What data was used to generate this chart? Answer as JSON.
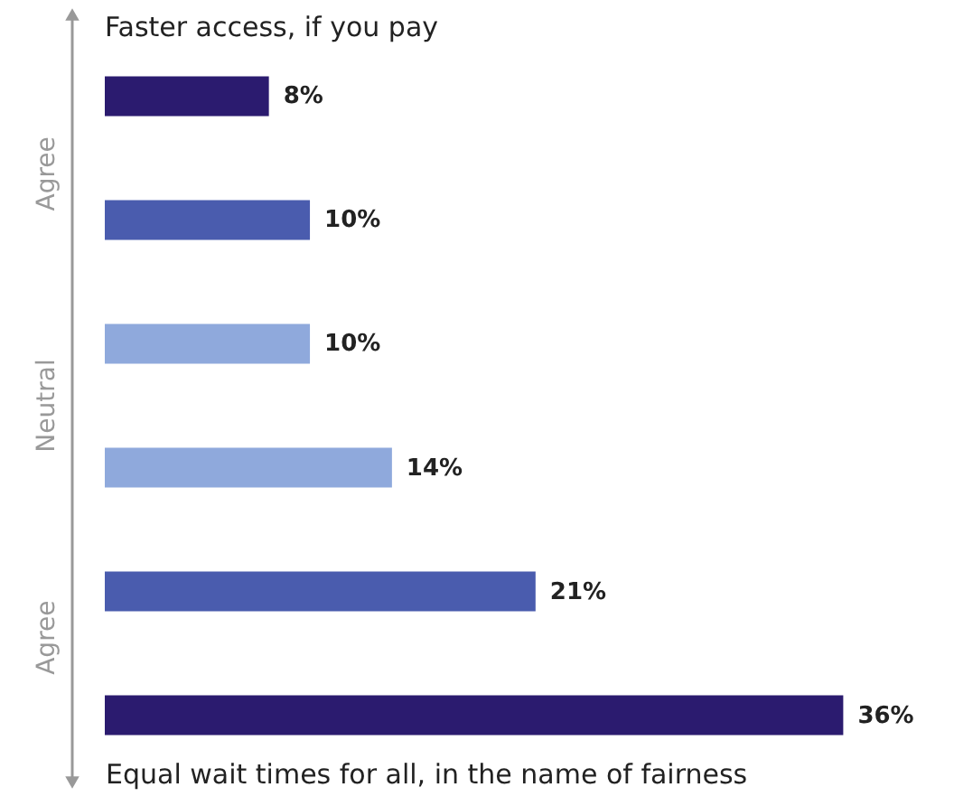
{
  "chart_data": {
    "type": "bar",
    "orientation": "horizontal",
    "title": "Faster access, if you pay",
    "xlabel": "Equal wait times for all, in the name of fairness",
    "annotations": [
      "Agree",
      "Neutral",
      "Agree"
    ],
    "categories": [
      null,
      null,
      null,
      null,
      null,
      null
    ],
    "values": [
      8,
      10,
      10,
      14,
      21,
      36
    ],
    "colors": [
      "#2b1b6f",
      "#4a5cae",
      "#8fa9dc",
      "#8fa9dc",
      "#4a5cae",
      "#2b1b6f"
    ],
    "value_labels": [
      "8%",
      "10%",
      "10%",
      "14%",
      "21%",
      "36%"
    ]
  }
}
